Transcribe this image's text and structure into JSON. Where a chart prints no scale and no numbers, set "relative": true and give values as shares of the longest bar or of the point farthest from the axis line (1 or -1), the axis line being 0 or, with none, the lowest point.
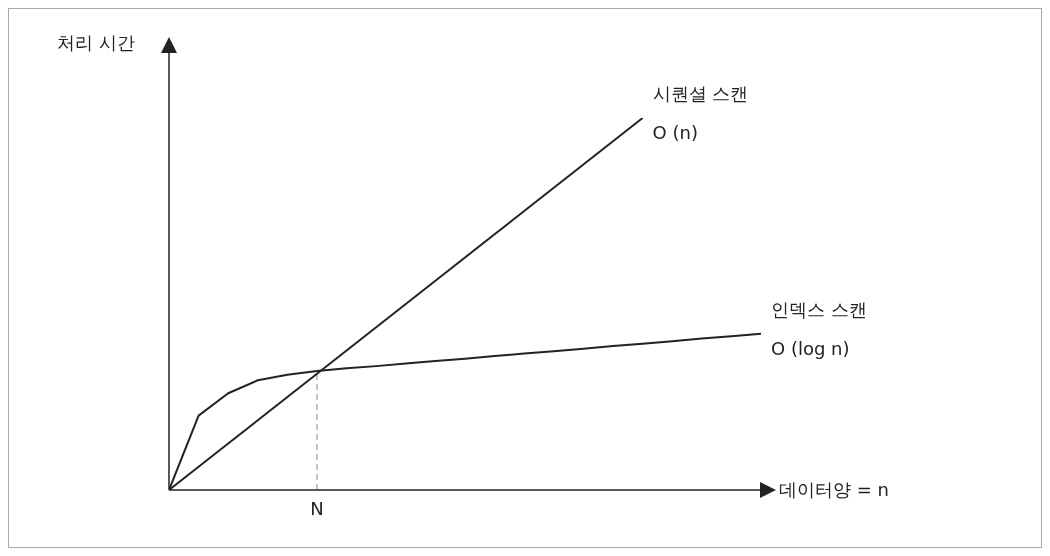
{
  "chart_data": {
    "type": "line",
    "relative": true,
    "xlabel": "데이터양 = n",
    "ylabel": "처리 시간",
    "categories": [
      null,
      null,
      null,
      null,
      null,
      null,
      null,
      null,
      null,
      null,
      null,
      null,
      null,
      null,
      null,
      null,
      null,
      null,
      null,
      null,
      null
    ],
    "series": [
      {
        "name": "시퀀셜 스캔",
        "color": "#222222",
        "values": [
          0,
          0.0625,
          0.125,
          0.1875,
          0.25,
          0.3125,
          0.375,
          0.4375,
          0.5,
          0.5625,
          0.625,
          0.6875,
          0.75,
          0.8125,
          0.875,
          0.9375,
          1,
          null,
          null,
          null,
          null
        ]
      },
      {
        "name": "인덱스 스캔",
        "color": "#222222",
        "values": [
          0,
          0.2,
          0.26,
          0.295,
          0.31,
          0.32,
          0.327,
          0.333,
          0.34,
          0.347,
          0.353,
          0.36,
          0.367,
          0.373,
          0.38,
          0.387,
          0.393,
          0.4,
          0.407,
          0.413,
          0.42
        ]
      }
    ],
    "annotations": [
      "O (n)",
      "O (log n)",
      "N"
    ]
  }
}
